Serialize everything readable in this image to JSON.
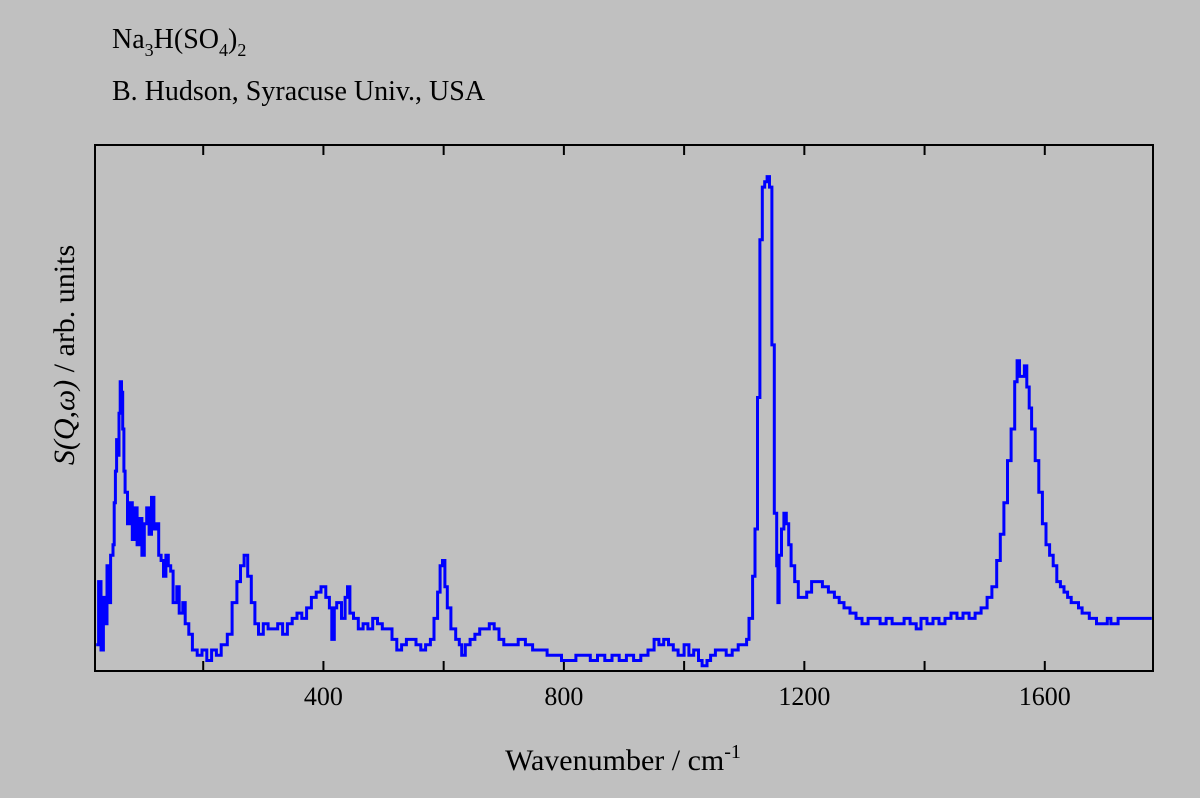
{
  "chart_data": {
    "type": "line",
    "title": {
      "compound_base": "Na",
      "compound_sub1": "3",
      "compound_mid": "H(SO",
      "compound_sub2": "4",
      "compound_close": ")",
      "compound_sub3": "2"
    },
    "subtitle": "B. Hudson, Syracuse Univ., USA",
    "xlabel_main": "Wavenumber / cm",
    "xlabel_sup": "-1",
    "ylabel_italic": "S(Q,ω)",
    "ylabel_rest": " / arb. units",
    "xlim": [
      20,
      1780
    ],
    "ylim": [
      0,
      100
    ],
    "x_ticks_labeled": [
      400,
      800,
      1200,
      1600
    ],
    "x_tick_labels": [
      "400",
      "800",
      "1200",
      "1600"
    ],
    "x_ticks_minor": [
      200,
      600,
      1000,
      1400
    ],
    "y_ticks_labeled": false,
    "grid": false,
    "line_color": "#0000ff",
    "series": [
      {
        "values_xy": [
          [
            22,
            5
          ],
          [
            26,
            17
          ],
          [
            30,
            4
          ],
          [
            34,
            14
          ],
          [
            38,
            9
          ],
          [
            40,
            20
          ],
          [
            44,
            13
          ],
          [
            46,
            22
          ],
          [
            50,
            24
          ],
          [
            52,
            32
          ],
          [
            54,
            38
          ],
          [
            56,
            44
          ],
          [
            58,
            41
          ],
          [
            60,
            49
          ],
          [
            62,
            55
          ],
          [
            64,
            53
          ],
          [
            66,
            46
          ],
          [
            68,
            38
          ],
          [
            70,
            34
          ],
          [
            74,
            28
          ],
          [
            78,
            32
          ],
          [
            82,
            25
          ],
          [
            86,
            31
          ],
          [
            90,
            24
          ],
          [
            94,
            29
          ],
          [
            98,
            22
          ],
          [
            102,
            28
          ],
          [
            106,
            31
          ],
          [
            110,
            26
          ],
          [
            114,
            33
          ],
          [
            118,
            27
          ],
          [
            122,
            28
          ],
          [
            126,
            22
          ],
          [
            130,
            21
          ],
          [
            134,
            18
          ],
          [
            138,
            22
          ],
          [
            142,
            20
          ],
          [
            146,
            19
          ],
          [
            150,
            13
          ],
          [
            156,
            16
          ],
          [
            160,
            11
          ],
          [
            166,
            13
          ],
          [
            170,
            9
          ],
          [
            176,
            7
          ],
          [
            182,
            4
          ],
          [
            190,
            3
          ],
          [
            198,
            4
          ],
          [
            206,
            2
          ],
          [
            214,
            4
          ],
          [
            222,
            3
          ],
          [
            230,
            5
          ],
          [
            240,
            7
          ],
          [
            248,
            13
          ],
          [
            256,
            17
          ],
          [
            262,
            20
          ],
          [
            268,
            22
          ],
          [
            274,
            18
          ],
          [
            280,
            13
          ],
          [
            286,
            9
          ],
          [
            292,
            7
          ],
          [
            300,
            9
          ],
          [
            308,
            8
          ],
          [
            316,
            8
          ],
          [
            324,
            9
          ],
          [
            332,
            7
          ],
          [
            340,
            9
          ],
          [
            348,
            10
          ],
          [
            356,
            11
          ],
          [
            364,
            10
          ],
          [
            372,
            12
          ],
          [
            380,
            14
          ],
          [
            388,
            15
          ],
          [
            396,
            16
          ],
          [
            404,
            14
          ],
          [
            410,
            12
          ],
          [
            414,
            6
          ],
          [
            418,
            12
          ],
          [
            422,
            13
          ],
          [
            430,
            10
          ],
          [
            436,
            14
          ],
          [
            440,
            16
          ],
          [
            444,
            11
          ],
          [
            450,
            10
          ],
          [
            458,
            8
          ],
          [
            466,
            9
          ],
          [
            474,
            8
          ],
          [
            482,
            10
          ],
          [
            490,
            9
          ],
          [
            498,
            8
          ],
          [
            506,
            8
          ],
          [
            514,
            6
          ],
          [
            522,
            4
          ],
          [
            530,
            5
          ],
          [
            538,
            6
          ],
          [
            546,
            6
          ],
          [
            554,
            5
          ],
          [
            562,
            4
          ],
          [
            570,
            5
          ],
          [
            578,
            6
          ],
          [
            584,
            10
          ],
          [
            590,
            15
          ],
          [
            594,
            20
          ],
          [
            598,
            21
          ],
          [
            602,
            16
          ],
          [
            606,
            12
          ],
          [
            612,
            8
          ],
          [
            620,
            6
          ],
          [
            626,
            5
          ],
          [
            630,
            3
          ],
          [
            636,
            5
          ],
          [
            644,
            6
          ],
          [
            652,
            7
          ],
          [
            660,
            8
          ],
          [
            668,
            8
          ],
          [
            676,
            9
          ],
          [
            684,
            8
          ],
          [
            692,
            6
          ],
          [
            700,
            5
          ],
          [
            712,
            5
          ],
          [
            724,
            6
          ],
          [
            736,
            5
          ],
          [
            748,
            4
          ],
          [
            760,
            4
          ],
          [
            772,
            3
          ],
          [
            784,
            3
          ],
          [
            796,
            2
          ],
          [
            808,
            2
          ],
          [
            820,
            3
          ],
          [
            832,
            3
          ],
          [
            844,
            2
          ],
          [
            856,
            3
          ],
          [
            868,
            2
          ],
          [
            880,
            3
          ],
          [
            892,
            2
          ],
          [
            904,
            3
          ],
          [
            916,
            2
          ],
          [
            928,
            3
          ],
          [
            940,
            4
          ],
          [
            950,
            6
          ],
          [
            958,
            5
          ],
          [
            966,
            6
          ],
          [
            974,
            5
          ],
          [
            982,
            4
          ],
          [
            990,
            3
          ],
          [
            1000,
            5
          ],
          [
            1008,
            3
          ],
          [
            1016,
            4
          ],
          [
            1024,
            2
          ],
          [
            1030,
            1
          ],
          [
            1038,
            2
          ],
          [
            1044,
            3
          ],
          [
            1052,
            4
          ],
          [
            1060,
            4
          ],
          [
            1070,
            3
          ],
          [
            1080,
            4
          ],
          [
            1090,
            5
          ],
          [
            1098,
            5
          ],
          [
            1104,
            6
          ],
          [
            1108,
            10
          ],
          [
            1114,
            18
          ],
          [
            1118,
            27
          ],
          [
            1122,
            52
          ],
          [
            1126,
            82
          ],
          [
            1130,
            92
          ],
          [
            1134,
            93
          ],
          [
            1138,
            94
          ],
          [
            1142,
            92
          ],
          [
            1146,
            62
          ],
          [
            1150,
            30
          ],
          [
            1154,
            20
          ],
          [
            1156,
            13
          ],
          [
            1158,
            22
          ],
          [
            1162,
            27
          ],
          [
            1166,
            30
          ],
          [
            1170,
            28
          ],
          [
            1174,
            24
          ],
          [
            1178,
            20
          ],
          [
            1184,
            17
          ],
          [
            1190,
            14
          ],
          [
            1196,
            14
          ],
          [
            1204,
            15
          ],
          [
            1212,
            17
          ],
          [
            1220,
            17
          ],
          [
            1230,
            16
          ],
          [
            1240,
            15
          ],
          [
            1250,
            14
          ],
          [
            1258,
            13
          ],
          [
            1266,
            12
          ],
          [
            1276,
            11
          ],
          [
            1286,
            10
          ],
          [
            1296,
            9
          ],
          [
            1306,
            10
          ],
          [
            1316,
            10
          ],
          [
            1326,
            9
          ],
          [
            1336,
            10
          ],
          [
            1346,
            9
          ],
          [
            1356,
            9
          ],
          [
            1366,
            10
          ],
          [
            1376,
            9
          ],
          [
            1386,
            8
          ],
          [
            1394,
            10
          ],
          [
            1404,
            9
          ],
          [
            1414,
            10
          ],
          [
            1424,
            9
          ],
          [
            1434,
            10
          ],
          [
            1444,
            11
          ],
          [
            1454,
            10
          ],
          [
            1464,
            11
          ],
          [
            1474,
            10
          ],
          [
            1484,
            11
          ],
          [
            1494,
            12
          ],
          [
            1504,
            14
          ],
          [
            1512,
            16
          ],
          [
            1520,
            21
          ],
          [
            1526,
            26
          ],
          [
            1532,
            32
          ],
          [
            1538,
            40
          ],
          [
            1544,
            46
          ],
          [
            1550,
            55
          ],
          [
            1554,
            59
          ],
          [
            1558,
            56
          ],
          [
            1562,
            56
          ],
          [
            1566,
            58
          ],
          [
            1570,
            54
          ],
          [
            1574,
            50
          ],
          [
            1578,
            46
          ],
          [
            1584,
            40
          ],
          [
            1590,
            34
          ],
          [
            1596,
            28
          ],
          [
            1602,
            24
          ],
          [
            1608,
            22
          ],
          [
            1614,
            20
          ],
          [
            1620,
            17
          ],
          [
            1626,
            16
          ],
          [
            1632,
            15
          ],
          [
            1638,
            14
          ],
          [
            1644,
            13
          ],
          [
            1650,
            13
          ],
          [
            1656,
            12
          ],
          [
            1662,
            11
          ],
          [
            1668,
            11
          ],
          [
            1674,
            10
          ],
          [
            1680,
            10
          ],
          [
            1686,
            9
          ],
          [
            1692,
            9
          ],
          [
            1698,
            9
          ],
          [
            1704,
            10
          ],
          [
            1710,
            9
          ],
          [
            1716,
            9
          ],
          [
            1722,
            10
          ],
          [
            1728,
            10
          ],
          [
            1734,
            10
          ],
          [
            1740,
            10
          ],
          [
            1746,
            10
          ],
          [
            1752,
            10
          ],
          [
            1758,
            10
          ],
          [
            1764,
            10
          ],
          [
            1770,
            10
          ],
          [
            1778,
            10
          ]
        ]
      }
    ]
  }
}
